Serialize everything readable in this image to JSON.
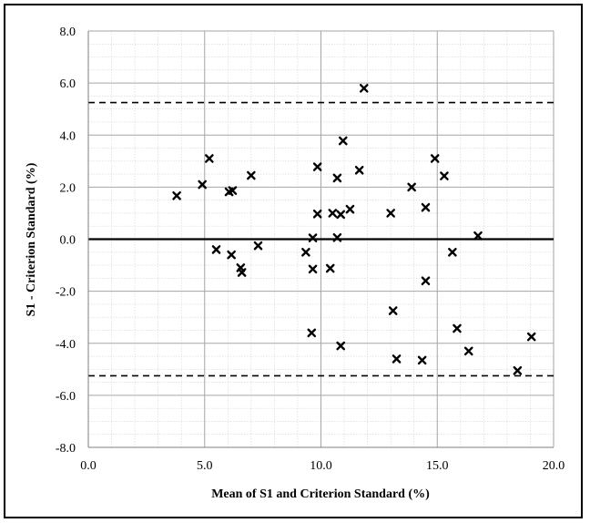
{
  "chart_data": {
    "type": "scatter",
    "title": "",
    "xlabel": "Mean of S1 and Criterion Standard  (%)",
    "ylabel": "S1 - Criterion Standard (%)",
    "xlim": [
      0,
      20
    ],
    "ylim": [
      -8,
      8
    ],
    "x_ticks": [
      "0.0",
      "5.0",
      "10.0",
      "15.0",
      "20.0"
    ],
    "y_ticks": [
      "8.0",
      "6.0",
      "4.0",
      "2.0",
      "0.0",
      "-2.0",
      "-4.0",
      "-6.0",
      "-8.0"
    ],
    "grid": true,
    "marker": "x",
    "reference_lines": {
      "mean_difference": 0.0,
      "upper_limit": 5.25,
      "lower_limit": -5.25
    },
    "points": [
      {
        "x": 3.8,
        "y": 1.67
      },
      {
        "x": 4.9,
        "y": 2.1
      },
      {
        "x": 5.2,
        "y": 3.1
      },
      {
        "x": 5.5,
        "y": -0.4
      },
      {
        "x": 6.05,
        "y": 1.82
      },
      {
        "x": 6.2,
        "y": 1.87
      },
      {
        "x": 6.15,
        "y": -0.6
      },
      {
        "x": 6.55,
        "y": -1.1
      },
      {
        "x": 6.6,
        "y": -1.28
      },
      {
        "x": 7.0,
        "y": 2.45
      },
      {
        "x": 7.3,
        "y": -0.25
      },
      {
        "x": 9.35,
        "y": -0.5
      },
      {
        "x": 9.65,
        "y": 0.05
      },
      {
        "x": 9.65,
        "y": -1.15
      },
      {
        "x": 9.6,
        "y": -3.6
      },
      {
        "x": 9.85,
        "y": 2.78
      },
      {
        "x": 9.85,
        "y": 0.97
      },
      {
        "x": 10.4,
        "y": -1.12
      },
      {
        "x": 10.5,
        "y": 1.0
      },
      {
        "x": 10.7,
        "y": 2.35
      },
      {
        "x": 10.7,
        "y": 0.06
      },
      {
        "x": 10.85,
        "y": 0.95
      },
      {
        "x": 10.85,
        "y": -4.1
      },
      {
        "x": 10.95,
        "y": 3.78
      },
      {
        "x": 11.25,
        "y": 1.15
      },
      {
        "x": 11.65,
        "y": 2.65
      },
      {
        "x": 11.85,
        "y": 5.8
      },
      {
        "x": 13.0,
        "y": 1.0
      },
      {
        "x": 13.1,
        "y": -2.75
      },
      {
        "x": 13.25,
        "y": -4.6
      },
      {
        "x": 13.9,
        "y": 2.0
      },
      {
        "x": 14.35,
        "y": -4.65
      },
      {
        "x": 14.5,
        "y": 1.22
      },
      {
        "x": 14.5,
        "y": -1.6
      },
      {
        "x": 14.9,
        "y": 3.1
      },
      {
        "x": 15.3,
        "y": 2.43
      },
      {
        "x": 15.65,
        "y": -0.5
      },
      {
        "x": 15.85,
        "y": -3.43
      },
      {
        "x": 16.35,
        "y": -4.3
      },
      {
        "x": 16.75,
        "y": 0.13
      },
      {
        "x": 18.45,
        "y": -5.05
      },
      {
        "x": 19.05,
        "y": -3.75
      }
    ]
  }
}
